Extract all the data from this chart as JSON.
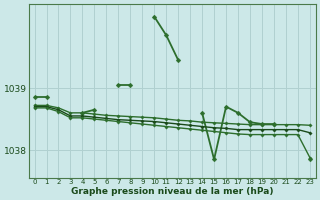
{
  "xlabel": "Graphe pression niveau de la mer (hPa)",
  "bg_color": "#cce8e8",
  "grid_color": "#b0d0d0",
  "ylim": [
    1037.55,
    1040.35
  ],
  "xlim": [
    -0.5,
    23.5
  ],
  "yticks": [
    1038,
    1039
  ],
  "xticks": [
    0,
    1,
    2,
    3,
    4,
    5,
    6,
    7,
    8,
    9,
    10,
    11,
    12,
    13,
    14,
    15,
    16,
    17,
    18,
    19,
    20,
    21,
    22,
    23
  ],
  "xtick_fontsize": 5.0,
  "ytick_fontsize": 6.5,
  "xlabel_fontsize": 6.5,
  "series": [
    {
      "x": [
        0,
        1,
        2,
        3,
        4,
        5,
        6,
        7,
        8,
        9,
        10,
        11,
        12,
        13,
        14,
        15,
        16,
        17,
        18,
        19,
        20,
        21,
        22,
        23
      ],
      "y": [
        1038.85,
        1038.85,
        null,
        null,
        1038.6,
        1038.65,
        null,
        1039.05,
        1039.05,
        null,
        1040.15,
        1039.85,
        1039.45,
        null,
        1038.6,
        1037.85,
        1038.7,
        1038.6,
        1038.45,
        1038.42,
        1038.42,
        null,
        null,
        1037.85
      ],
      "color": "#2d6e2d",
      "lw": 1.3,
      "ms": 2.5
    },
    {
      "x": [
        0,
        1,
        2,
        3,
        4,
        5,
        6,
        7,
        8,
        9,
        10,
        11,
        12,
        13,
        14,
        15,
        16,
        17,
        18,
        19,
        20,
        21,
        22,
        23
      ],
      "y": [
        1038.72,
        1038.72,
        1038.68,
        1038.6,
        1038.6,
        1038.58,
        1038.56,
        1038.55,
        1038.54,
        1038.53,
        1038.52,
        1038.5,
        1038.48,
        1038.47,
        1038.45,
        1038.44,
        1038.43,
        1038.42,
        1038.41,
        1038.41,
        1038.41,
        1038.41,
        1038.41,
        1038.4
      ],
      "color": "#2d6e2d",
      "lw": 1.0,
      "ms": 1.8
    },
    {
      "x": [
        0,
        1,
        2,
        3,
        4,
        5,
        6,
        7,
        8,
        9,
        10,
        11,
        12,
        13,
        14,
        15,
        16,
        17,
        18,
        19,
        20,
        21,
        22,
        23
      ],
      "y": [
        1038.7,
        1038.7,
        1038.65,
        1038.55,
        1038.55,
        1038.53,
        1038.51,
        1038.49,
        1038.48,
        1038.47,
        1038.46,
        1038.44,
        1038.42,
        1038.4,
        1038.38,
        1038.36,
        1038.35,
        1038.33,
        1038.33,
        1038.33,
        1038.33,
        1038.33,
        1038.33,
        1038.28
      ],
      "color": "#1a4a1a",
      "lw": 1.0,
      "ms": 1.8
    },
    {
      "x": [
        0,
        1,
        2,
        3,
        4,
        5,
        6,
        7,
        8,
        9,
        10,
        11,
        12,
        13,
        14,
        15,
        16,
        17,
        18,
        19,
        20,
        21,
        22,
        23
      ],
      "y": [
        1038.68,
        1038.68,
        1038.62,
        1038.52,
        1038.52,
        1038.5,
        1038.48,
        1038.46,
        1038.44,
        1038.42,
        1038.4,
        1038.38,
        1038.36,
        1038.34,
        1038.32,
        1038.3,
        1038.28,
        1038.26,
        1038.25,
        1038.25,
        1038.25,
        1038.25,
        1038.25,
        1037.88
      ],
      "color": "#2d6e2d",
      "lw": 1.0,
      "ms": 1.8
    }
  ]
}
